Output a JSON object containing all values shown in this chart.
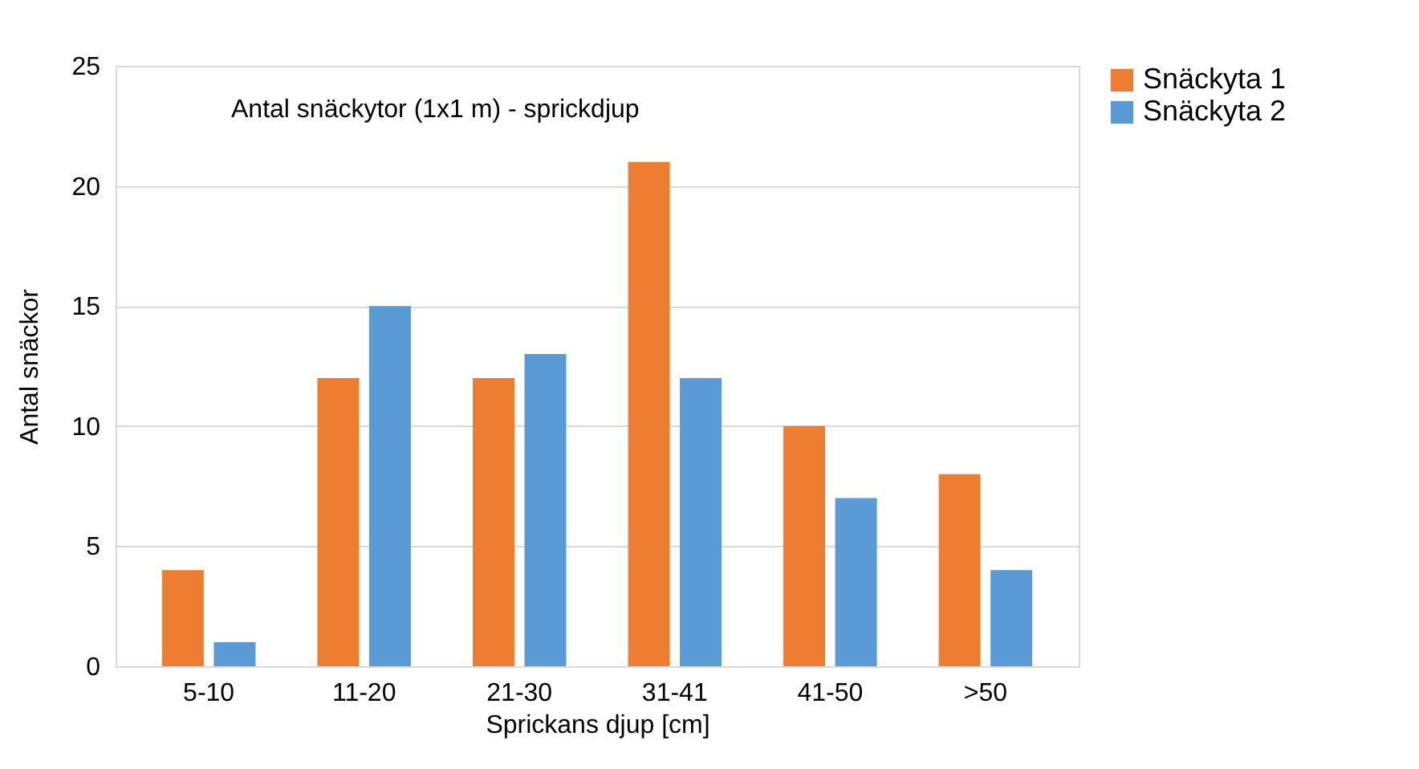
{
  "chart_data": {
    "type": "bar",
    "title": "Antal snäckytor (1x1 m) - sprickdjup",
    "xlabel": "Sprickans djup  [cm]",
    "ylabel": "Antal snäckor",
    "categories": [
      "5-10",
      "11-20",
      "21-30",
      "31-41",
      "41-50",
      ">50"
    ],
    "series": [
      {
        "name": "Snäckyta 1",
        "color": "#ed7d31",
        "values": [
          4,
          12,
          12,
          21,
          10,
          8
        ]
      },
      {
        "name": "Snäckyta 2",
        "color": "#5b9bd5",
        "values": [
          1,
          15,
          13,
          12,
          7,
          4
        ]
      }
    ],
    "ylim": [
      0,
      25
    ],
    "yticks": [
      0,
      5,
      10,
      15,
      20,
      25
    ],
    "grid": "y",
    "legend": "right"
  }
}
